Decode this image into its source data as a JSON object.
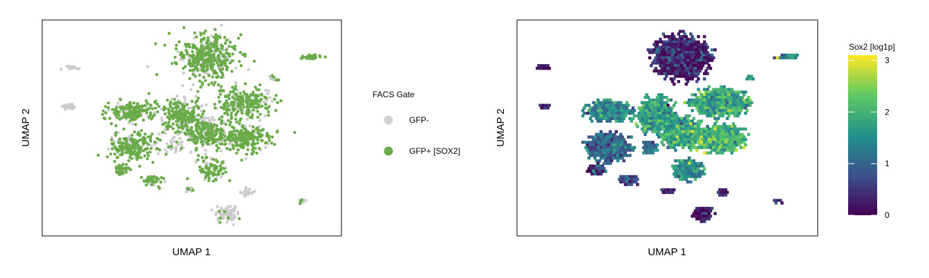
{
  "chart_data": [
    {
      "type": "scatter",
      "xlabel": "UMAP 1",
      "ylabel": "UMAP 2",
      "legend": {
        "title": "FACS Gate",
        "placement": "right",
        "entries": [
          {
            "label": "GFP-",
            "color": "#d3d3d3"
          },
          {
            "label": "GFP+ [SOX2]",
            "color": "#6aab49"
          }
        ]
      },
      "xlim": [
        0,
        100
      ],
      "ylim": [
        0,
        100
      ],
      "grid": false,
      "point_colors": {
        "negative": "#cccccc",
        "positive": "#6aab49"
      },
      "clusters": [
        {
          "x": 55,
          "y": 84,
          "rx": 10,
          "ry": 11,
          "n": 420,
          "pos": 0.7
        },
        {
          "x": 46,
          "y": 56,
          "rx": 7,
          "ry": 9,
          "n": 260,
          "pos": 0.65
        },
        {
          "x": 68,
          "y": 62,
          "rx": 10,
          "ry": 7,
          "n": 260,
          "pos": 0.75
        },
        {
          "x": 30,
          "y": 58,
          "rx": 8,
          "ry": 5,
          "n": 180,
          "pos": 0.8
        },
        {
          "x": 30,
          "y": 41,
          "rx": 8,
          "ry": 7,
          "n": 220,
          "pos": 0.8
        },
        {
          "x": 55,
          "y": 48,
          "rx": 7,
          "ry": 8,
          "n": 260,
          "pos": 0.55
        },
        {
          "x": 68,
          "y": 45,
          "rx": 9,
          "ry": 7,
          "n": 240,
          "pos": 0.8
        },
        {
          "x": 57,
          "y": 30,
          "rx": 5,
          "ry": 5,
          "n": 90,
          "pos": 0.7
        },
        {
          "x": 26,
          "y": 30,
          "rx": 3,
          "ry": 3,
          "n": 40,
          "pos": 0.8
        },
        {
          "x": 37,
          "y": 25,
          "rx": 3.5,
          "ry": 2.5,
          "n": 45,
          "pos": 0.75
        },
        {
          "x": 62,
          "y": 9,
          "rx": 3.5,
          "ry": 4,
          "n": 90,
          "pos": 0.05
        },
        {
          "x": 69,
          "y": 19,
          "rx": 2,
          "ry": 2,
          "n": 25,
          "pos": 0.05
        },
        {
          "x": 8,
          "y": 60,
          "rx": 2,
          "ry": 1.6,
          "n": 22,
          "pos": 0
        },
        {
          "x": 8,
          "y": 79,
          "rx": 3,
          "ry": 1,
          "n": 22,
          "pos": 0
        },
        {
          "x": 91,
          "y": 84,
          "rx": 4,
          "ry": 1.2,
          "n": 35,
          "pos": 0.9
        },
        {
          "x": 78,
          "y": 74,
          "rx": 2,
          "ry": 1.2,
          "n": 14,
          "pos": 0.3
        },
        {
          "x": 88,
          "y": 15,
          "rx": 1.5,
          "ry": 1,
          "n": 12,
          "pos": 0.3
        },
        {
          "x": 50,
          "y": 20,
          "rx": 2.5,
          "ry": 1.2,
          "n": 16,
          "pos": 0.1
        },
        {
          "x": 44,
          "y": 41,
          "rx": 3,
          "ry": 3,
          "n": 30,
          "pos": 0.1
        }
      ]
    },
    {
      "type": "heatmap",
      "xlabel": "UMAP 1",
      "ylabel": "UMAP 2",
      "colorbar": {
        "title": "Sox2 [log1p]",
        "range": [
          0,
          3.1
        ],
        "ticks": [
          0,
          1,
          2,
          3
        ],
        "tick_labels": [
          "0",
          "1",
          "2",
          "3"
        ],
        "colormap": "viridis",
        "stops": [
          "#440154",
          "#3b528b",
          "#21918c",
          "#5ec962",
          "#fde725"
        ]
      },
      "xlim": [
        0,
        100
      ],
      "ylim": [
        0,
        100
      ],
      "grid": false,
      "regions": [
        {
          "x": 55,
          "y": 84,
          "rx": 10,
          "ry": 11,
          "value": 0.25
        },
        {
          "x": 46,
          "y": 56,
          "rx": 7,
          "ry": 9,
          "value": 1.7
        },
        {
          "x": 68,
          "y": 62,
          "rx": 10,
          "ry": 7,
          "value": 1.9
        },
        {
          "x": 30,
          "y": 58,
          "rx": 8,
          "ry": 5,
          "value": 1.4
        },
        {
          "x": 30,
          "y": 41,
          "rx": 8,
          "ry": 7,
          "value": 1.1
        },
        {
          "x": 55,
          "y": 48,
          "rx": 7,
          "ry": 8,
          "value": 1.9
        },
        {
          "x": 68,
          "y": 45,
          "rx": 9,
          "ry": 7,
          "value": 2.0
        },
        {
          "x": 57,
          "y": 30,
          "rx": 5,
          "ry": 5,
          "value": 1.5
        },
        {
          "x": 26,
          "y": 30,
          "rx": 3,
          "ry": 3,
          "value": 0.5
        },
        {
          "x": 37,
          "y": 25,
          "rx": 3.5,
          "ry": 2.5,
          "value": 0.6
        },
        {
          "x": 62,
          "y": 9,
          "rx": 3.5,
          "ry": 4,
          "value": 0.1
        },
        {
          "x": 69,
          "y": 19,
          "rx": 2,
          "ry": 2,
          "value": 0.3
        },
        {
          "x": 8,
          "y": 60,
          "rx": 2,
          "ry": 1.6,
          "value": 0.1
        },
        {
          "x": 8,
          "y": 79,
          "rx": 3,
          "ry": 1,
          "value": 0.1
        },
        {
          "x": 91,
          "y": 84,
          "rx": 4,
          "ry": 1.2,
          "value": 1.3
        },
        {
          "x": 78,
          "y": 74,
          "rx": 2,
          "ry": 1.2,
          "value": 1.6
        },
        {
          "x": 88,
          "y": 15,
          "rx": 1.5,
          "ry": 1,
          "value": 0.4
        },
        {
          "x": 50,
          "y": 20,
          "rx": 2.5,
          "ry": 1.2,
          "value": 0.4
        },
        {
          "x": 44,
          "y": 41,
          "rx": 3,
          "ry": 3,
          "value": 1.2
        }
      ]
    }
  ]
}
